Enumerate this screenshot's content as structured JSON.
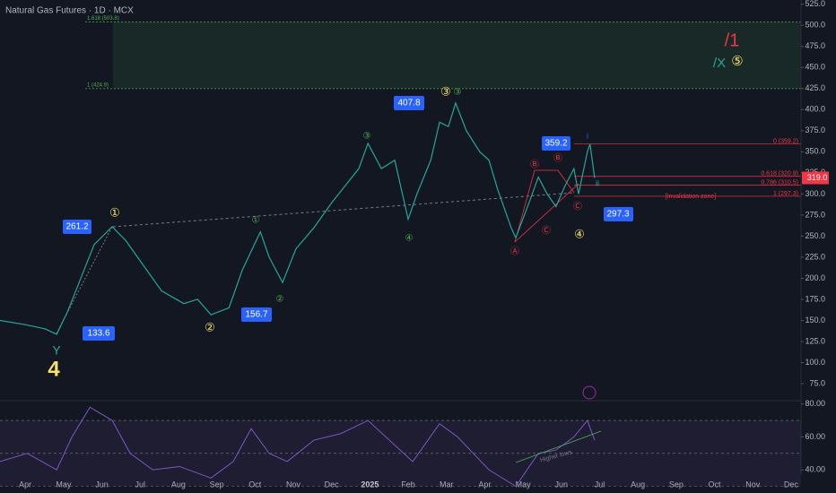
{
  "chart_data": {
    "type": "line",
    "title": "Natural Gas Futures · 1D · MCX",
    "xlim": [
      -0.66,
      20.26
    ],
    "xticks": [
      {
        "value": 0,
        "label": "Apr"
      },
      {
        "value": 1,
        "label": "May"
      },
      {
        "value": 2,
        "label": "Jun"
      },
      {
        "value": 3,
        "label": "Jul"
      },
      {
        "value": 4,
        "label": "Aug"
      },
      {
        "value": 5,
        "label": "Sep"
      },
      {
        "value": 6,
        "label": "Oct"
      },
      {
        "value": 7,
        "label": "Nov"
      },
      {
        "value": 8,
        "label": "Dec"
      },
      {
        "value": 9,
        "label": "2025"
      },
      {
        "value": 10,
        "label": "Feb"
      },
      {
        "value": 11,
        "label": "Mar"
      },
      {
        "value": 12,
        "label": "Apr"
      },
      {
        "value": 13,
        "label": "May"
      },
      {
        "value": 14,
        "label": "Jun"
      },
      {
        "value": 15,
        "label": "Jul"
      },
      {
        "value": 16,
        "label": "Aug"
      },
      {
        "value": 17,
        "label": "Sep"
      },
      {
        "value": 18,
        "label": "Oct"
      },
      {
        "value": 19,
        "label": "Nov"
      },
      {
        "value": 20,
        "label": "Dec"
      }
    ],
    "ylim": [
      57,
      530
    ],
    "yticks": [
      {
        "value": 525,
        "label": "525.0"
      },
      {
        "value": 500,
        "label": "500.0"
      },
      {
        "value": 475,
        "label": "475.0"
      },
      {
        "value": 450,
        "label": "450.0"
      },
      {
        "value": 425,
        "label": "425.0"
      },
      {
        "value": 400,
        "label": "400.0"
      },
      {
        "value": 375,
        "label": "375.0"
      },
      {
        "value": 350,
        "label": "350.0"
      },
      {
        "value": 325,
        "label": "325.0"
      },
      {
        "value": 300,
        "label": "300.0"
      },
      {
        "value": 275,
        "label": "275.0"
      },
      {
        "value": 250,
        "label": "250.0"
      },
      {
        "value": 225,
        "label": "225.0"
      },
      {
        "value": 200,
        "label": "200.0"
      },
      {
        "value": 175,
        "label": "175.0"
      },
      {
        "value": 150,
        "label": "150.0"
      },
      {
        "value": 125,
        "label": "125.0"
      },
      {
        "value": 100,
        "label": "100.0"
      },
      {
        "value": 75,
        "label": "75.0"
      }
    ],
    "series": [
      {
        "name": "Price",
        "color": "#26a69a",
        "x": [
          -0.66,
          0,
          0.52,
          0.82,
          1.1,
          1.45,
          1.8,
          2.27,
          2.62,
          3.09,
          3.56,
          4.14,
          4.5,
          4.85,
          5.32,
          5.67,
          6.14,
          6.37,
          6.72,
          7.07,
          7.54,
          8.01,
          8.36,
          8.71,
          8.95,
          9.3,
          9.65,
          10.0,
          10.23,
          10.59,
          10.82,
          11.05,
          11.24,
          11.52,
          11.87,
          12.11,
          12.34,
          12.69,
          12.81,
          13.16,
          13.4,
          13.63,
          13.86,
          14.1,
          14.33,
          14.45,
          14.68,
          14.75,
          14.87
        ],
        "values": [
          150,
          145,
          140,
          133.6,
          160,
          200,
          240,
          261.2,
          245,
          215,
          185,
          170,
          175,
          156.7,
          165,
          210,
          255,
          225,
          195,
          235,
          260,
          290,
          310,
          330,
          360,
          330,
          340,
          270,
          300,
          340,
          385,
          380,
          407.8,
          375,
          350,
          340,
          305,
          260,
          248,
          290,
          320,
          300,
          285,
          310,
          330,
          300,
          350,
          359.2,
          319
        ]
      }
    ],
    "last_price": {
      "value": 319,
      "label": "319.0",
      "color": "#f23645"
    },
    "fib_levels": [
      {
        "value": 359.2,
        "label": "0 (359.2)"
      },
      {
        "value": 320.9,
        "label": "0.618 (320.9)"
      },
      {
        "value": 310.5,
        "label": "0.786 (310.5)"
      },
      {
        "value": 297.3,
        "label": "1 (297.3)"
      }
    ],
    "zone": [
      {
        "value": 503.8,
        "label": "1.618 (503.8)"
      },
      {
        "value": 424.9,
        "label": "1 (424.9)"
      }
    ],
    "invalidation": "[Invalidation zone]",
    "price_labels": [
      261.2,
      133.6,
      156.7,
      407.8,
      359.2,
      297.3
    ],
    "wave_labels": [
      "①",
      "②",
      "③",
      "③",
      "④",
      "⑤",
      "①",
      "②",
      "③",
      "④",
      "Ⓐ",
      "Ⓑ",
      "Ⓒ",
      "Ⓑ",
      "Ⓒ",
      "Y",
      "4",
      "/1",
      "/X",
      "i",
      "ii"
    ],
    "rsi": {
      "color": "#7e57c2",
      "ylim": [
        27,
        82
      ],
      "yticks": [
        {
          "value": 80,
          "label": "80.00"
        },
        {
          "value": 60,
          "label": "60.00"
        },
        {
          "value": 40,
          "label": "40.00"
        }
      ],
      "bands": [
        70,
        50,
        30
      ],
      "x": [
        -0.66,
        0.05,
        0.82,
        1.22,
        1.69,
        2.27,
        2.74,
        3.33,
        4.03,
        4.85,
        5.43,
        5.9,
        6.37,
        6.84,
        7.54,
        8.24,
        8.95,
        9.65,
        10.12,
        10.82,
        11.29,
        12.11,
        12.81,
        13.4,
        13.86,
        14.33,
        14.68,
        14.87
      ],
      "values": [
        45,
        50,
        40,
        60,
        78,
        70,
        50,
        40,
        42,
        35,
        45,
        65,
        50,
        45,
        58,
        62,
        70,
        55,
        45,
        68,
        60,
        40,
        30,
        50,
        52,
        60,
        70,
        58
      ],
      "annotation": "Higher lows"
    }
  }
}
